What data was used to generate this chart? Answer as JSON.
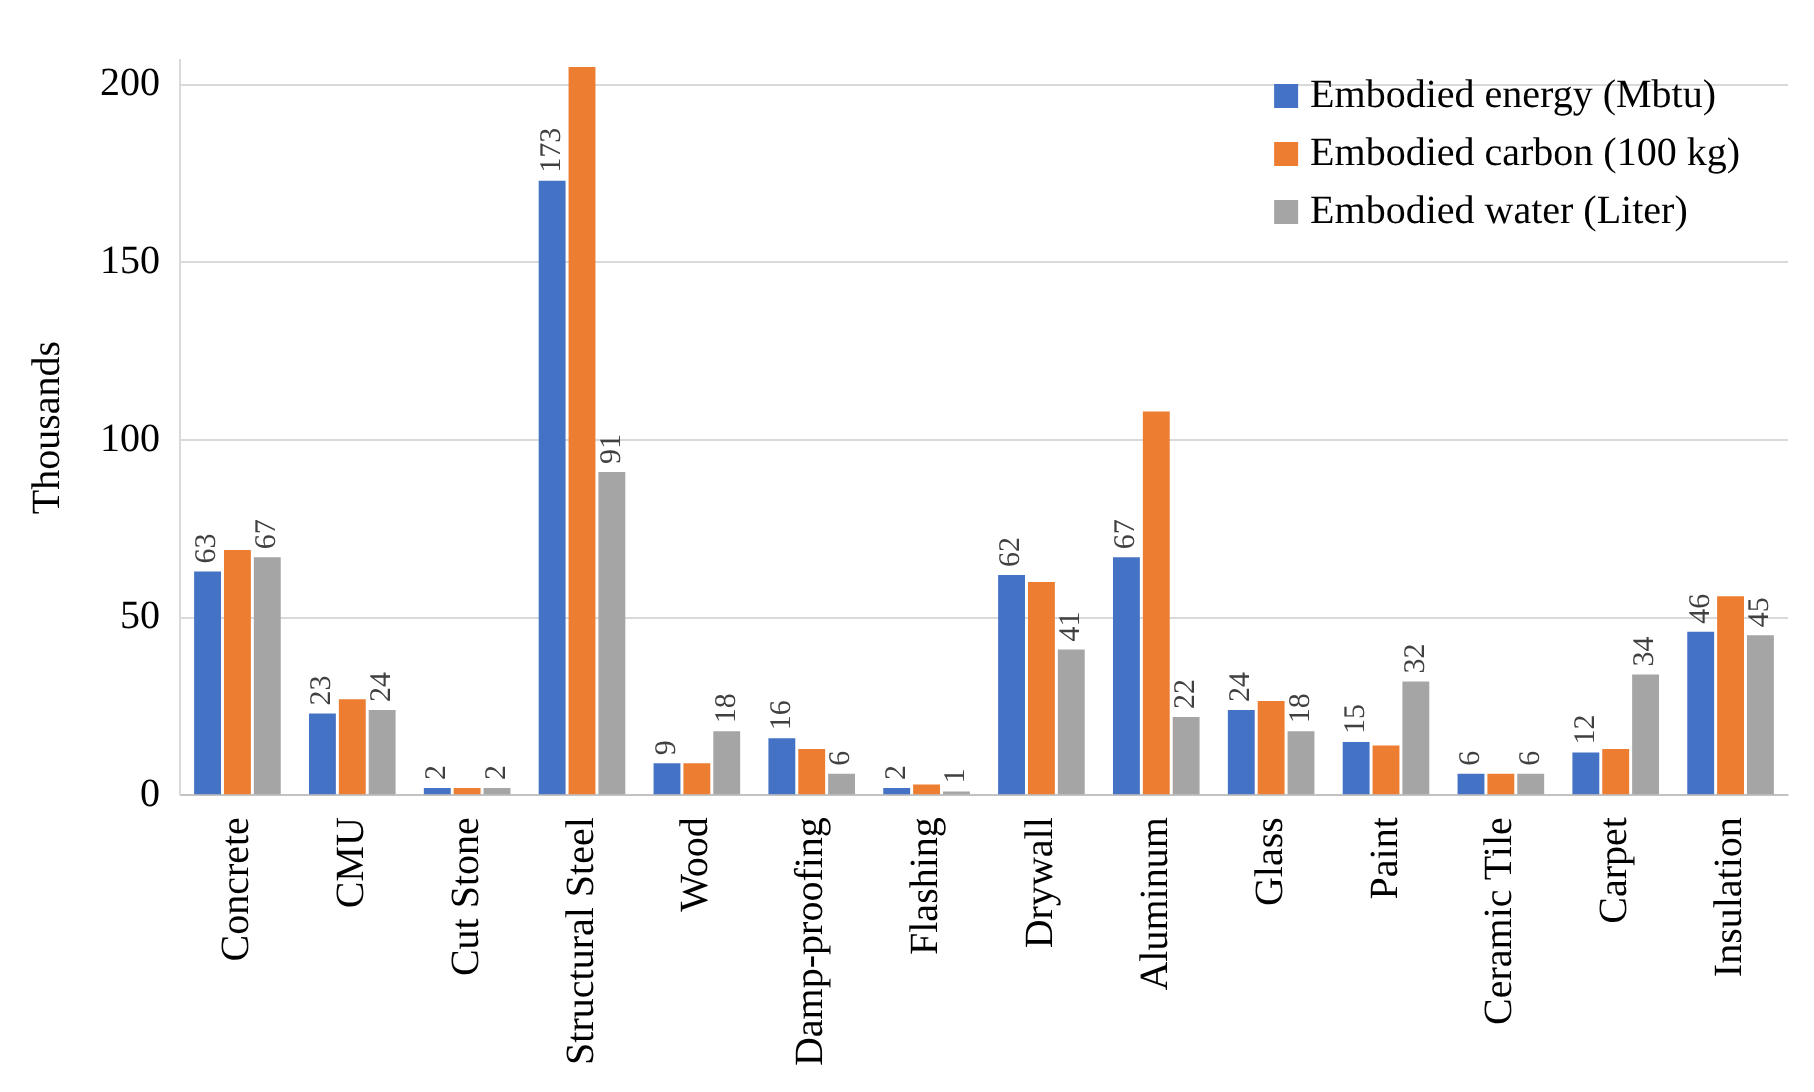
{
  "chart_data": {
    "type": "bar",
    "ylabel": "Thousands",
    "categories": [
      "Concrete",
      "CMU",
      "Cut Stone",
      "Structural Steel",
      "Wood",
      "Damp-proofing",
      "Flashing",
      "Drywall",
      "Aluminum",
      "Glass",
      "Paint",
      "Ceramic Tile",
      "Carpet",
      "Insulation"
    ],
    "series": [
      {
        "name": "Embodied energy (Mbtu)",
        "color": "#4472c4",
        "values": [
          63,
          23,
          2,
          173,
          9,
          16,
          2,
          62,
          67,
          24,
          15,
          6,
          12,
          46
        ],
        "value_labels": [
          "63",
          "23",
          "2",
          "173",
          "9",
          "16",
          "2",
          "62",
          "67",
          "24",
          "15",
          "6",
          "12",
          "46"
        ]
      },
      {
        "name": "Embodied carbon (100 kg)",
        "color": "#ed7d31",
        "values": [
          69,
          27,
          2,
          205,
          9,
          13,
          3,
          60,
          108,
          26.5,
          14,
          6,
          13,
          56
        ]
      },
      {
        "name": "Embodied water (Liter)",
        "color": "#a5a5a5",
        "values": [
          67,
          24,
          2,
          91,
          18,
          6,
          1,
          41,
          22,
          18,
          32,
          6,
          34,
          45
        ],
        "value_labels": [
          "67",
          "24",
          "2",
          "91",
          "18",
          "6",
          "1",
          "41",
          "22",
          "18",
          "32",
          "6",
          "34",
          "45"
        ]
      }
    ],
    "ylim": [
      0,
      207
    ],
    "yticks": [
      0,
      50,
      100,
      150,
      200
    ],
    "grid": "y",
    "legend": "top right"
  }
}
